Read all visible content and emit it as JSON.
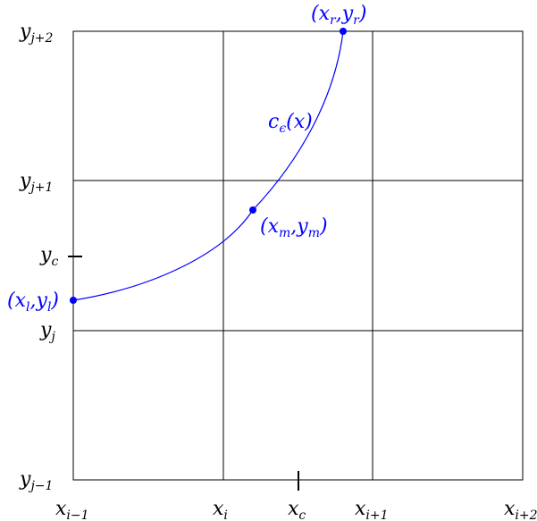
{
  "y_labels": {
    "y_jp2": {
      "base": "y",
      "sub": "j+2"
    },
    "y_jp1": {
      "base": "y",
      "sub": "j+1"
    },
    "y_c": {
      "base": "y",
      "sub": "c"
    },
    "y_j": {
      "base": "y",
      "sub": "j"
    },
    "y_jm1": {
      "base": "y",
      "sub": "j−1"
    }
  },
  "x_labels": {
    "x_im1": {
      "base": "x",
      "sub": "i−1"
    },
    "x_i": {
      "base": "x",
      "sub": "i"
    },
    "x_c": {
      "base": "x",
      "sub": "c"
    },
    "x_ip1": {
      "base": "x",
      "sub": "i+1"
    },
    "x_ip2": {
      "base": "x",
      "sub": "i+2"
    }
  },
  "curve_label": {
    "base": "c",
    "sub": "ϵ",
    "tail": "(x)"
  },
  "points": {
    "left": {
      "open": "(",
      "a": "x",
      "a_sub": "l",
      "sep": ",",
      "b": "y",
      "b_sub": "l",
      "close": ")"
    },
    "middle": {
      "open": "(",
      "a": "x",
      "a_sub": "m",
      "sep": ",",
      "b": "y",
      "b_sub": "m",
      "close": ")"
    },
    "right": {
      "open": "(",
      "a": "x",
      "a_sub": "r",
      "sep": ",",
      "b": "y",
      "b_sub": "r",
      "close": ")"
    }
  },
  "colors": {
    "curve": "#0000ff",
    "grid": "#000000"
  }
}
